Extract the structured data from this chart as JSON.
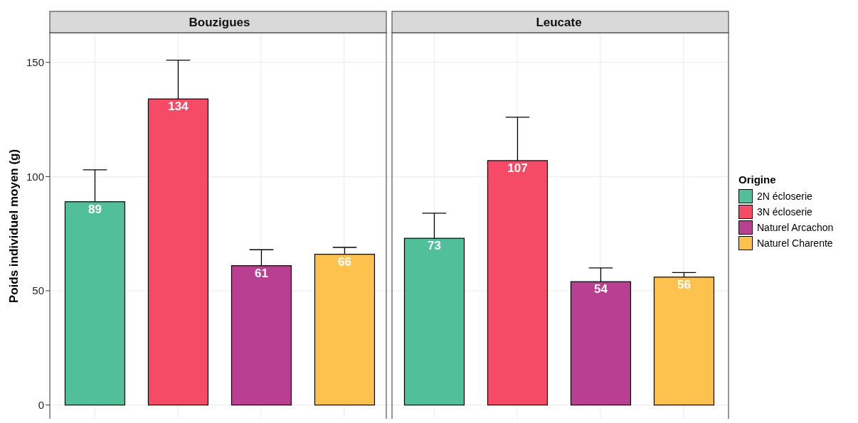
{
  "chart_data": {
    "type": "bar",
    "ylabel": "Poids individuel moyen (g)",
    "categories": [
      "Bouzigues",
      "Leucate"
    ],
    "series": [
      {
        "name": "2N écloserie",
        "color": "#52bf9b",
        "values": [
          89,
          73
        ],
        "errors": [
          14,
          11
        ]
      },
      {
        "name": "3N écloserie",
        "color": "#f54b66",
        "values": [
          134,
          107
        ],
        "errors": [
          17,
          19
        ]
      },
      {
        "name": "Naturel Arcachon",
        "color": "#b83f91",
        "values": [
          61,
          54
        ],
        "errors": [
          7,
          6
        ]
      },
      {
        "name": "Naturel Charente",
        "color": "#fdc24e",
        "values": [
          66,
          56
        ],
        "errors": [
          3,
          2
        ]
      }
    ],
    "data_labels": true,
    "ylim": [
      -6,
      163
    ],
    "yticks": [
      0,
      50,
      100,
      150
    ],
    "grid": true,
    "legend": "right",
    "legend_title": "Origine"
  }
}
